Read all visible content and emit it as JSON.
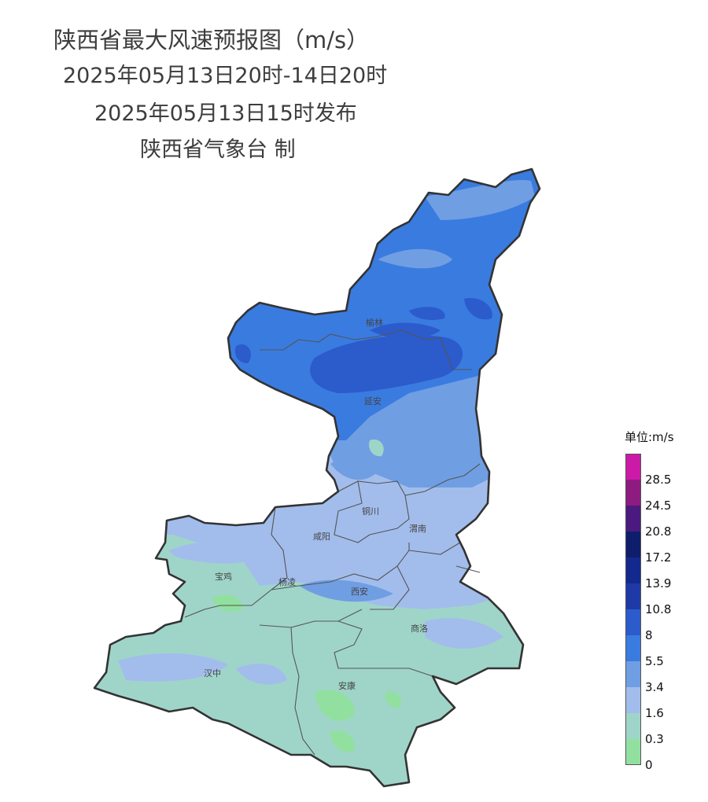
{
  "header": {
    "title": "陕西省最大风速预报图（m/s）",
    "period": "2025年05月13日20时-14日20时",
    "issued": "2025年05月13日15时发布",
    "agency": "陕西省气象台 制"
  },
  "legend": {
    "title": "单位:m/s",
    "labels": [
      "28.5",
      "24.5",
      "20.8",
      "17.2",
      "13.9",
      "10.8",
      "8",
      "5.5",
      "3.4",
      "1.6",
      "0.3",
      "0"
    ],
    "colors": [
      "#cc1aa8",
      "#8e1b80",
      "#4b1a7e",
      "#0e1e6b",
      "#13298d",
      "#1f3aa6",
      "#2c5bcc",
      "#3a7be0",
      "#6f9ee3",
      "#a2bdec",
      "#9fd5c8",
      "#92e0a0"
    ]
  },
  "cities": [
    "榆林",
    "延安",
    "铜川",
    "咸阳",
    "渭南",
    "宝鸡",
    "杨凌",
    "西安",
    "商洛",
    "汉中",
    "安康"
  ],
  "colors": {
    "boundary": "#333333",
    "city_boundary": "#555555"
  }
}
